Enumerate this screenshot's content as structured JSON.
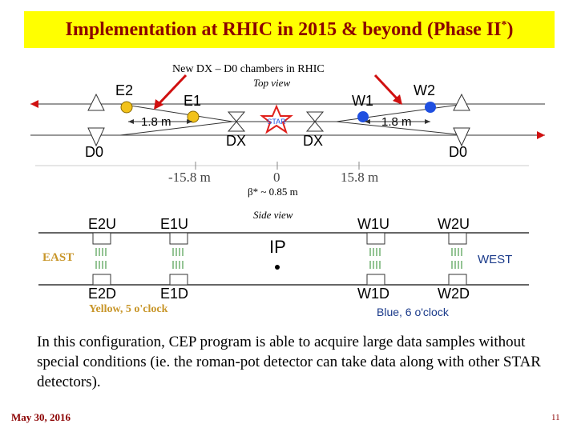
{
  "title": {
    "main": "Implementation at RHIC in 2015 & beyond (Phase II",
    "sup": "*",
    "close": ")"
  },
  "annotation": "New DX – D0 chambers in RHIC",
  "top_view": {
    "caption": "Top view",
    "labels": {
      "e2": "E2",
      "e1": "E1",
      "w1": "W1",
      "w2": "W2",
      "d0_left": "D0",
      "d0_right": "D0",
      "dx_left": "DX",
      "dx_right": "DX",
      "star": "STAR",
      "dist_left": "1.8 m",
      "dist_right": "1.8 m"
    },
    "axis": {
      "left": "-15.8 m",
      "center": "0",
      "right": "15.8 m"
    },
    "colors": {
      "yellow_pot": "#f2c21a",
      "blue_pot": "#1f4fe0",
      "star": "#e0201c",
      "arrow": "#d01010",
      "beam_arrow": "#d01010"
    }
  },
  "beta": "β* ~ 0.85 m",
  "side_view": {
    "caption": "Side view",
    "labels": {
      "e2u": "E2U",
      "e1u": "E1U",
      "w1u": "W1U",
      "w2u": "W2U",
      "e2d": "E2D",
      "e1d": "E1D",
      "w1d": "W1D",
      "w2d": "W2D",
      "ip": "IP"
    },
    "east": "EAST",
    "west": "WEST",
    "yellow": "Yellow, 5 o'clock",
    "blue": "Blue, 6 o'clock"
  },
  "body": "In this configuration, CEP program is able to acquire large data samples without special conditions (ie. the roman-pot detector can take data along with other STAR detectors).",
  "footer": {
    "date": "May 30, 2016",
    "page": "11"
  }
}
